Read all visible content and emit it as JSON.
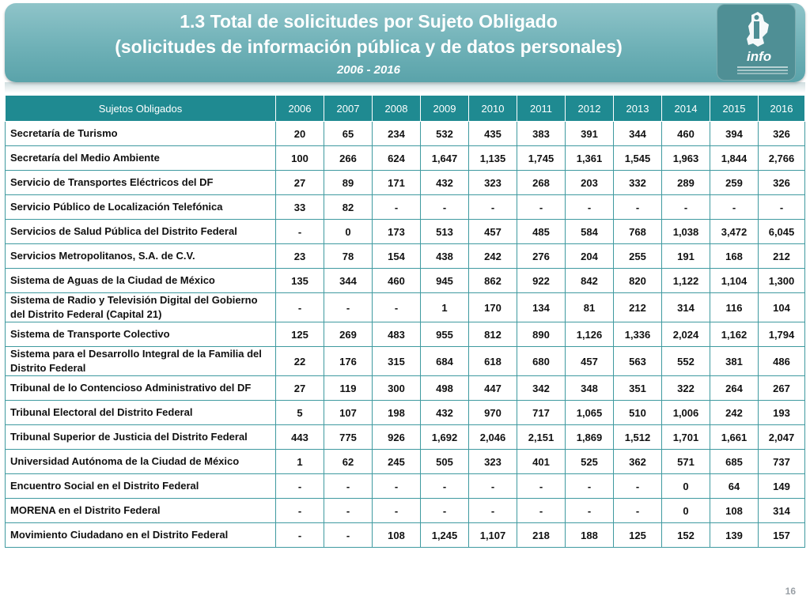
{
  "header": {
    "title_line1": "1.3 Total de solicitudes por Sujeto Obligado",
    "title_line2": "(solicitudes de información pública y de datos personales)",
    "period": "2006 - 2016",
    "logo_text": "info"
  },
  "table": {
    "columns": [
      "Sujetos Obligados",
      "2006",
      "2007",
      "2008",
      "2009",
      "2010",
      "2011",
      "2012",
      "2013",
      "2014",
      "2015",
      "2016"
    ],
    "rows": [
      {
        "name": "Secretaría de Turismo",
        "values": [
          "20",
          "65",
          "234",
          "532",
          "435",
          "383",
          "391",
          "344",
          "460",
          "394",
          "326"
        ]
      },
      {
        "name": "Secretaría del Medio Ambiente",
        "values": [
          "100",
          "266",
          "624",
          "1,647",
          "1,135",
          "1,745",
          "1,361",
          "1,545",
          "1,963",
          "1,844",
          "2,766"
        ]
      },
      {
        "name": "Servicio de Transportes Eléctricos del DF",
        "values": [
          "27",
          "89",
          "171",
          "432",
          "323",
          "268",
          "203",
          "332",
          "289",
          "259",
          "326"
        ]
      },
      {
        "name": "Servicio Público de Localización Telefónica",
        "values": [
          "33",
          "82",
          "-",
          "-",
          "-",
          "-",
          "-",
          "-",
          "-",
          "-",
          "-"
        ]
      },
      {
        "name": "Servicios de Salud Pública del Distrito Federal",
        "values": [
          "-",
          "0",
          "173",
          "513",
          "457",
          "485",
          "584",
          "768",
          "1,038",
          "3,472",
          "6,045"
        ]
      },
      {
        "name": "Servicios Metropolitanos, S.A. de C.V.",
        "values": [
          "23",
          "78",
          "154",
          "438",
          "242",
          "276",
          "204",
          "255",
          "191",
          "168",
          "212"
        ]
      },
      {
        "name": "Sistema de Aguas de la Ciudad de México",
        "values": [
          "135",
          "344",
          "460",
          "945",
          "862",
          "922",
          "842",
          "820",
          "1,122",
          "1,104",
          "1,300"
        ]
      },
      {
        "name": "Sistema de Radio y Televisión Digital del Gobierno del Distrito Federal (Capital 21)",
        "values": [
          "-",
          "-",
          "-",
          "1",
          "170",
          "134",
          "81",
          "212",
          "314",
          "116",
          "104"
        ],
        "tall": true
      },
      {
        "name": "Sistema de Transporte Colectivo",
        "values": [
          "125",
          "269",
          "483",
          "955",
          "812",
          "890",
          "1,126",
          "1,336",
          "2,024",
          "1,162",
          "1,794"
        ]
      },
      {
        "name": "Sistema para el Desarrollo Integral de la Familia del Distrito Federal",
        "values": [
          "22",
          "176",
          "315",
          "684",
          "618",
          "680",
          "457",
          "563",
          "552",
          "381",
          "486"
        ],
        "tall": true
      },
      {
        "name": "Tribunal de lo Contencioso Administrativo del DF",
        "values": [
          "27",
          "119",
          "300",
          "498",
          "447",
          "342",
          "348",
          "351",
          "322",
          "264",
          "267"
        ]
      },
      {
        "name": "Tribunal Electoral del Distrito Federal",
        "values": [
          "5",
          "107",
          "198",
          "432",
          "970",
          "717",
          "1,065",
          "510",
          "1,006",
          "242",
          "193"
        ]
      },
      {
        "name": "Tribunal Superior de Justicia del Distrito Federal",
        "values": [
          "443",
          "775",
          "926",
          "1,692",
          "2,046",
          "2,151",
          "1,869",
          "1,512",
          "1,701",
          "1,661",
          "2,047"
        ]
      },
      {
        "name": "Universidad Autónoma de la Ciudad de México",
        "values": [
          "1",
          "62",
          "245",
          "505",
          "323",
          "401",
          "525",
          "362",
          "571",
          "685",
          "737"
        ]
      },
      {
        "name": "Encuentro Social en el Distrito Federal",
        "values": [
          "-",
          "-",
          "-",
          "-",
          "-",
          "-",
          "-",
          "-",
          "0",
          "64",
          "149"
        ]
      },
      {
        "name": "MORENA en el Distrito Federal",
        "values": [
          "-",
          "-",
          "-",
          "-",
          "-",
          "-",
          "-",
          "-",
          "0",
          "108",
          "314"
        ]
      },
      {
        "name": "Movimiento Ciudadano en el Distrito Federal",
        "values": [
          "-",
          "-",
          "108",
          "1,245",
          "1,107",
          "218",
          "188",
          "125",
          "152",
          "139",
          "157"
        ]
      }
    ]
  },
  "footer": {
    "page_number": "16"
  }
}
